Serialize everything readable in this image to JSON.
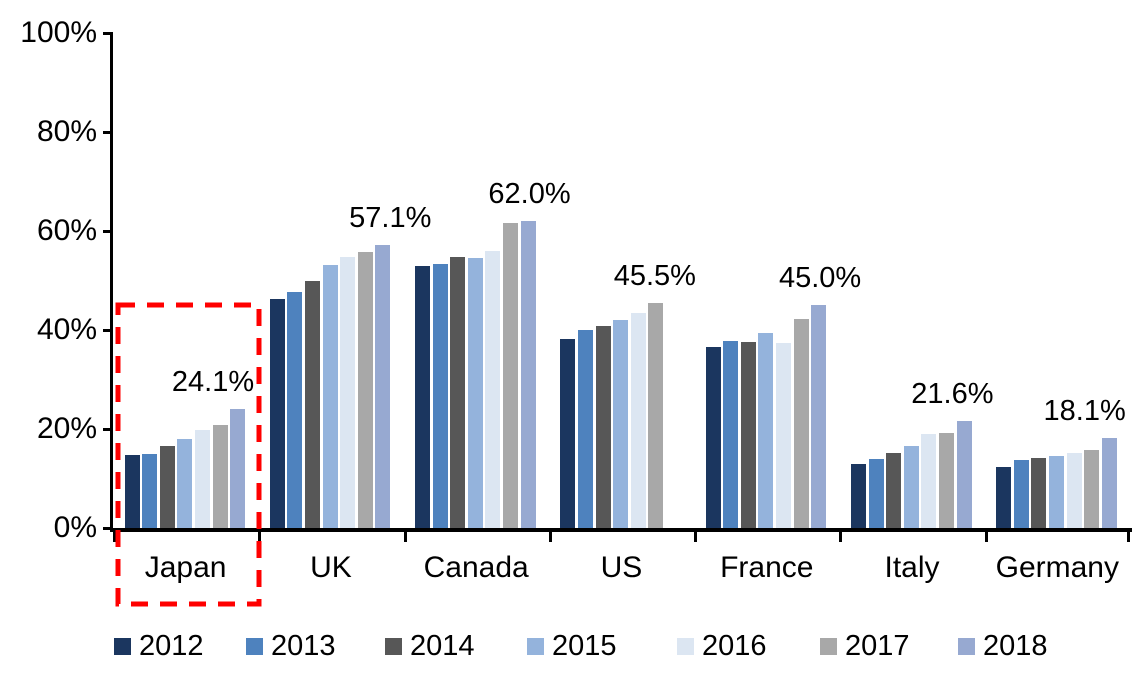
{
  "chart_data": {
    "type": "bar",
    "title": "",
    "xlabel": "",
    "ylabel": "",
    "categories": [
      "Japan",
      "UK",
      "Canada",
      "US",
      "France",
      "Italy",
      "Germany"
    ],
    "series": [
      {
        "name": "2012",
        "color": "#1B365F",
        "values": [
          14.8,
          46.3,
          53.0,
          38.2,
          36.5,
          13.0,
          12.4
        ]
      },
      {
        "name": "2013",
        "color": "#4E82BE",
        "values": [
          14.9,
          47.6,
          53.3,
          40.0,
          37.7,
          13.9,
          13.8
        ]
      },
      {
        "name": "2014",
        "color": "#575757",
        "values": [
          16.5,
          49.8,
          54.8,
          40.8,
          37.6,
          15.1,
          14.2
        ]
      },
      {
        "name": "2015",
        "color": "#94B3DC",
        "values": [
          17.9,
          53.1,
          54.6,
          42.0,
          39.3,
          16.6,
          14.5
        ]
      },
      {
        "name": "2016",
        "color": "#DCE6F2",
        "values": [
          19.7,
          54.7,
          56.0,
          43.5,
          37.3,
          18.9,
          15.2
        ]
      },
      {
        "name": "2017",
        "color": "#A8A8A8",
        "values": [
          20.9,
          55.7,
          61.7,
          45.5,
          42.3,
          19.1,
          15.7
        ]
      },
      {
        "name": "2018",
        "color": "#97A9D1",
        "values": [
          24.1,
          57.1,
          62.0,
          null,
          45.0,
          21.6,
          18.1
        ]
      }
    ],
    "bar_labels": [
      "24.1%",
      "57.1%",
      "62.0%",
      "45.5%",
      "45.0%",
      "21.6%",
      "18.1%"
    ],
    "y_ticks": [
      {
        "label": "0%",
        "value": 0
      },
      {
        "label": "20%",
        "value": 20
      },
      {
        "label": "40%",
        "value": 40
      },
      {
        "label": "60%",
        "value": 60
      },
      {
        "label": "80%",
        "value": 80
      },
      {
        "label": "100%",
        "value": 100
      }
    ],
    "ylim": [
      0,
      100
    ],
    "grid": false,
    "legend_position": "bottom",
    "highlight": {
      "target": "Japan",
      "shape": "dashed-rectangle",
      "color": "#FF0000"
    }
  }
}
